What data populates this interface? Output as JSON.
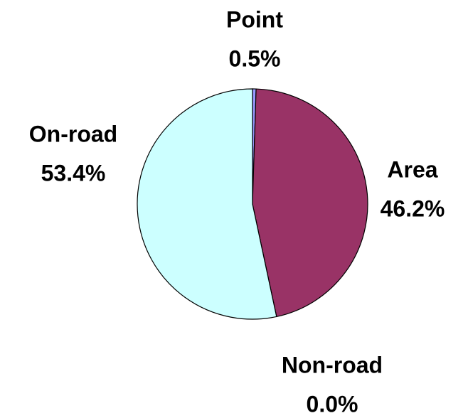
{
  "chart_data": {
    "type": "pie",
    "categories": [
      "Point",
      "Area",
      "Non-road",
      "On-road"
    ],
    "values": [
      0.5,
      46.2,
      0.0,
      53.4
    ],
    "value_labels": [
      "0.5%",
      "46.2%",
      "0.0%",
      "53.4%"
    ],
    "colors": [
      "#9999ff",
      "#993366",
      "#ffffcc",
      "#ccffff"
    ]
  }
}
